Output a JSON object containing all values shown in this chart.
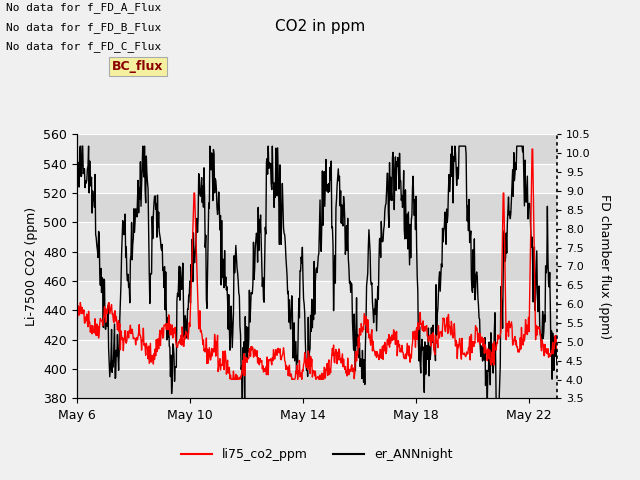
{
  "title": "CO2 in ppm",
  "ylabel_left": "Li-7500 CO2 (ppm)",
  "ylabel_right": "FD chamber flux (ppm)",
  "ylim_left": [
    380,
    560
  ],
  "ylim_right": [
    3.5,
    10.5
  ],
  "yticks_left": [
    380,
    400,
    420,
    440,
    460,
    480,
    500,
    520,
    540,
    560
  ],
  "yticks_right": [
    3.5,
    4.0,
    4.5,
    5.0,
    5.5,
    6.0,
    6.5,
    7.0,
    7.5,
    8.0,
    8.5,
    9.0,
    9.5,
    10.0,
    10.5
  ],
  "xtick_labels": [
    "May 6",
    "May 10",
    "May 14",
    "May 18",
    "May 22"
  ],
  "no_data_texts": [
    "No data for f_FD_A_Flux",
    "No data for f_FD_B_Flux",
    "No data for f_FD_C_Flux"
  ],
  "bc_flux_label": "BC_flux",
  "legend_entries": [
    "li75_co2_ppm",
    "er_ANNnight"
  ],
  "legend_colors": [
    "red",
    "black"
  ],
  "bg_color": "#f0f0f0",
  "plot_bg_color": "#e8e8e8",
  "title_fontsize": 11,
  "axis_fontsize": 9,
  "tick_fontsize": 9
}
